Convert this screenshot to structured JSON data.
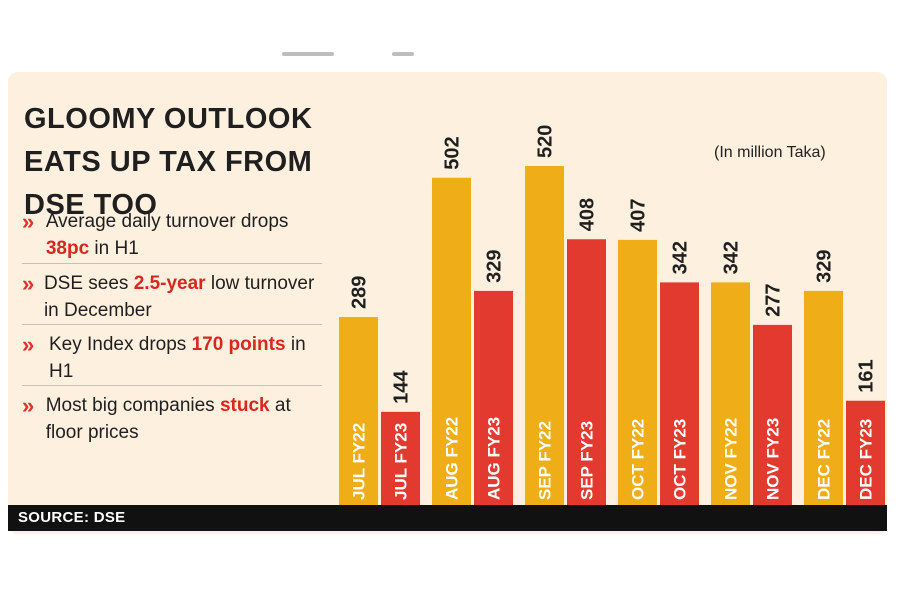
{
  "title_lines": [
    "GLOOMY OUTLOOK",
    "EATS UP TAX FROM DSE TOO"
  ],
  "units_label": "(In million Taka)",
  "points": [
    {
      "before": "Average daily turnover drops ",
      "highlight": "38pc",
      "after": " in H1"
    },
    {
      "before": "DSE sees ",
      "highlight": "2.5-year",
      "after": " low turnover in December"
    },
    {
      "before": "Key Index drops ",
      "highlight": "170 points",
      "after": " in H1"
    },
    {
      "before": "Most big companies ",
      "highlight": "stuck",
      "after": " at floor prices"
    }
  ],
  "source": "SOURCE: DSE",
  "colors": {
    "fy22": "#efad17",
    "fy23": "#e23a2e",
    "highlight": "#d8271f",
    "background": "#fdf0df"
  },
  "chart_data": {
    "type": "bar",
    "title": "GLOOMY OUTLOOK EATS UP TAX FROM DSE TOO",
    "ylabel": "In million Taka",
    "ylim": [
      0,
      520
    ],
    "series": [
      {
        "name": "FY22",
        "values": [
          289,
          502,
          520,
          407,
          342,
          329
        ],
        "labels": [
          "JUL FY22",
          "AUG FY22",
          "SEP FY22",
          "OCT FY22",
          "NOV FY22",
          "DEC FY22"
        ]
      },
      {
        "name": "FY23",
        "values": [
          144,
          329,
          408,
          342,
          277,
          161
        ],
        "labels": [
          "JUL FY23",
          "AUG FY23",
          "SEP FY23",
          "OCT FY23",
          "NOV FY23",
          "DEC FY23"
        ]
      }
    ]
  }
}
